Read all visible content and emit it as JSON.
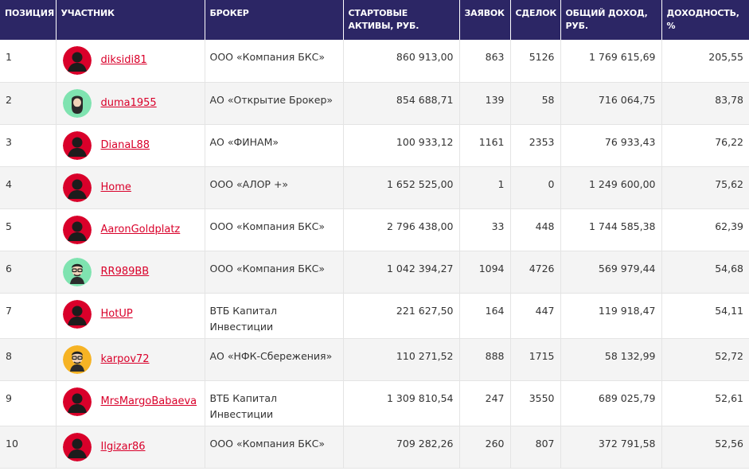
{
  "table": {
    "columns": [
      "ПОЗИЦИЯ",
      "УЧАСТНИК",
      "БРОКЕР",
      "СТАРТОВЫЕ АКТИВЫ, РУБ.",
      "ЗАЯВОК",
      "СДЕЛОК",
      "ОБЩИЙ ДОХОД, РУБ.",
      "ДОХОДНОСТЬ, %"
    ],
    "rows": [
      {
        "position": "1",
        "username": "diksidi81",
        "avatar": "default-red-avatar-icon",
        "broker": "ООО «Компания БКС»",
        "start_assets": "860 913,00",
        "orders": "863",
        "deals": "5126",
        "income": "1 769 615,69",
        "yield": "205,55"
      },
      {
        "position": "2",
        "username": "duma1955",
        "avatar": "bearded-man-avatar-icon",
        "broker": "АО «Открытие Брокер»",
        "start_assets": "854 688,71",
        "orders": "139",
        "deals": "58",
        "income": "716 064,75",
        "yield": "83,78"
      },
      {
        "position": "3",
        "username": "DianaL88",
        "avatar": "default-red-avatar-icon",
        "broker": "АО «ФИНАМ»",
        "start_assets": "100 933,12",
        "orders": "1161",
        "deals": "2353",
        "income": "76 933,43",
        "yield": "76,22"
      },
      {
        "position": "4",
        "username": "Home",
        "avatar": "default-red-avatar-icon",
        "broker": "ООО «АЛОР +»",
        "start_assets": "1 652 525,00",
        "orders": "1",
        "deals": "0",
        "income": "1 249 600,00",
        "yield": "75,62"
      },
      {
        "position": "5",
        "username": "AaronGoldplatz",
        "avatar": "default-red-avatar-icon",
        "broker": "ООО «Компания БКС»",
        "start_assets": "2 796 438,00",
        "orders": "33",
        "deals": "448",
        "income": "1 744 585,38",
        "yield": "62,39"
      },
      {
        "position": "6",
        "username": "RR989BB",
        "avatar": "glasses-man-green-avatar-icon",
        "broker": "ООО «Компания БКС»",
        "start_assets": "1 042 394,27",
        "orders": "1094",
        "deals": "4726",
        "income": "569 979,44",
        "yield": "54,68"
      },
      {
        "position": "7",
        "username": "HotUP",
        "avatar": "default-red-avatar-icon",
        "broker": "ВТБ Капитал Инвестиции",
        "start_assets": "221 627,50",
        "orders": "164",
        "deals": "447",
        "income": "119 918,47",
        "yield": "54,11"
      },
      {
        "position": "8",
        "username": "karpov72",
        "avatar": "glasses-man-yellow-avatar-icon",
        "broker": "АО «НФК-Сбережения»",
        "start_assets": "110 271,52",
        "orders": "888",
        "deals": "1715",
        "income": "58 132,99",
        "yield": "52,72"
      },
      {
        "position": "9",
        "username": "MrsMargoBabaeva",
        "avatar": "default-red-avatar-icon",
        "broker": "ВТБ Капитал Инвестиции",
        "start_assets": "1 309 810,54",
        "orders": "247",
        "deals": "3550",
        "income": "689 025,79",
        "yield": "52,61"
      },
      {
        "position": "10",
        "username": "Ilgizar86",
        "avatar": "default-red-avatar-icon",
        "broker": "ООО «Компания БКС»",
        "start_assets": "709 282,26",
        "orders": "260",
        "deals": "807",
        "income": "372 791,58",
        "yield": "52,56"
      }
    ]
  },
  "colors": {
    "header_bg": "#2c2665",
    "username_link": "#d9002a",
    "avatar_red": "#d9002a",
    "avatar_green": "#7fe3b0",
    "avatar_yellow": "#f6b324"
  }
}
